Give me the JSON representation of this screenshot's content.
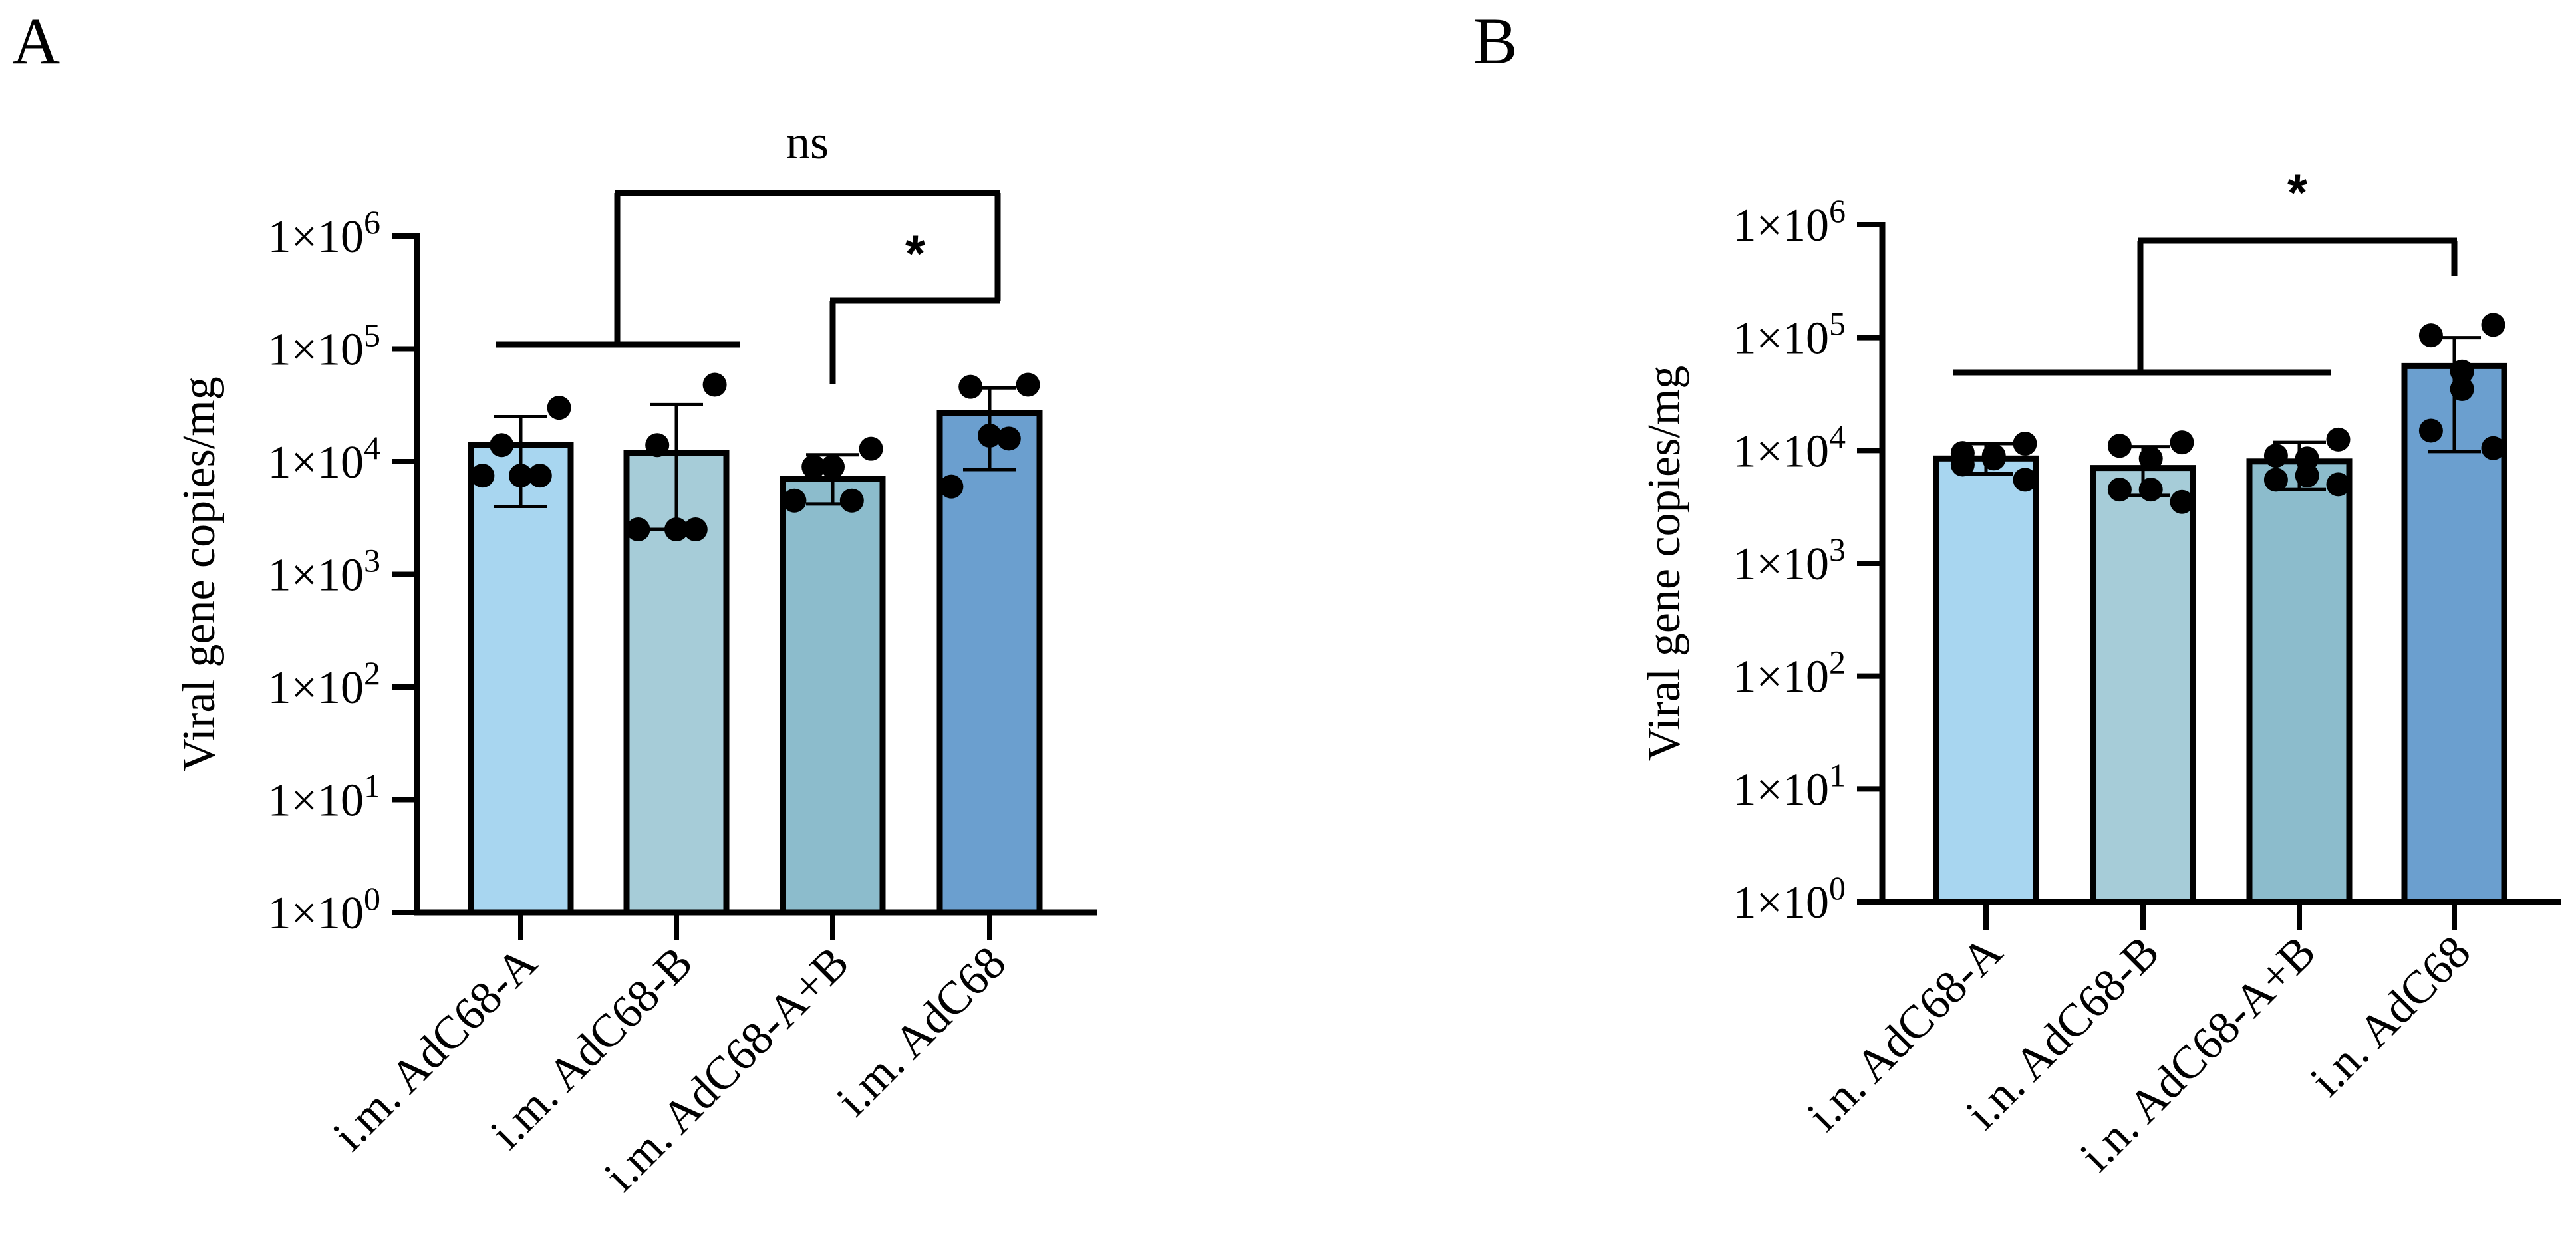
{
  "chart_data": [
    {
      "panel": "A",
      "type": "bar",
      "scale": "log10",
      "ylabel": "Viral gene copies/mg",
      "ylim": [
        1,
        1000000
      ],
      "yticks": [
        {
          "base": "1×10",
          "exp": "0"
        },
        {
          "base": "1×10",
          "exp": "1"
        },
        {
          "base": "1×10",
          "exp": "2"
        },
        {
          "base": "1×10",
          "exp": "3"
        },
        {
          "base": "1×10",
          "exp": "4"
        },
        {
          "base": "1×10",
          "exp": "5"
        },
        {
          "base": "1×10",
          "exp": "6"
        }
      ],
      "categories": [
        "i.m. AdC68-A",
        "i.m. AdC68-B",
        "i.m. AdC68-A+B",
        "i.m. AdC68"
      ],
      "colors": [
        "#a8d6f0",
        "#a6ccd8",
        "#8cbccc",
        "#6b9fcf"
      ],
      "values": [
        14000,
        12000,
        7000,
        27000
      ],
      "error_low": [
        4000,
        2500,
        4200,
        8500
      ],
      "error_high": [
        25000,
        32000,
        11500,
        45000
      ],
      "points": [
        [
          30000,
          14000,
          7500,
          7500,
          7500
        ],
        [
          48000,
          14000,
          2500,
          2500,
          2500
        ],
        [
          13000,
          9000,
          9000,
          4500,
          4500
        ],
        [
          48000,
          46000,
          17000,
          16000,
          6000
        ]
      ],
      "annotations": [
        {
          "label": "ns",
          "left_span": [
            0,
            2
          ],
          "right": 3,
          "style": "serif"
        },
        {
          "label": "*",
          "left": 2,
          "right": 3,
          "style": "bold"
        }
      ]
    },
    {
      "panel": "B",
      "type": "bar",
      "scale": "log10",
      "ylabel": "Viral gene copies/mg",
      "ylim": [
        1,
        1000000
      ],
      "yticks": [
        {
          "base": "1×10",
          "exp": "0"
        },
        {
          "base": "1×10",
          "exp": "1"
        },
        {
          "base": "1×10",
          "exp": "2"
        },
        {
          "base": "1×10",
          "exp": "3"
        },
        {
          "base": "1×10",
          "exp": "4"
        },
        {
          "base": "1×10",
          "exp": "5"
        },
        {
          "base": "1×10",
          "exp": "6"
        }
      ],
      "categories": [
        "i.n. AdC68-A",
        "i.n. AdC68-B",
        "i.n. AdC68-A+B",
        "i.n. AdC68"
      ],
      "colors": [
        "#a8d6f0",
        "#a6ccd8",
        "#8cbccc",
        "#6b9fcf"
      ],
      "values": [
        8500,
        7000,
        8000,
        56000
      ],
      "error_low": [
        6200,
        4000,
        4500,
        9800
      ],
      "error_high": [
        11500,
        10800,
        11800,
        100000
      ],
      "points": [
        [
          11500,
          9500,
          9000,
          8500,
          7500,
          5500
        ],
        [
          11800,
          11000,
          8500,
          4500,
          4500,
          3500
        ],
        [
          12500,
          9000,
          8500,
          6000,
          5500,
          5000
        ],
        [
          130000,
          105000,
          50000,
          35000,
          15000,
          10500
        ]
      ],
      "annotations": [
        {
          "label": "*",
          "left_span": [
            0,
            2
          ],
          "right": 3,
          "style": "bold"
        }
      ]
    }
  ],
  "panel_labels": [
    "A",
    "B"
  ]
}
